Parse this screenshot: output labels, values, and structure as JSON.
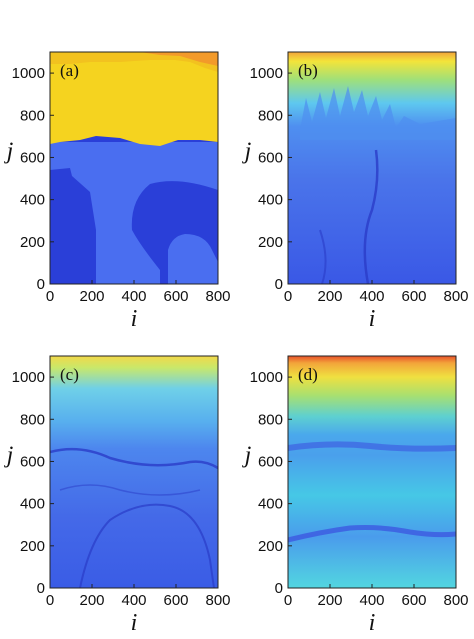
{
  "chart_data": [
    {
      "type": "heatmap",
      "panel_label": "(a)",
      "xlabel": "i",
      "ylabel": "j",
      "xlim": [
        0,
        800
      ],
      "ylim": [
        0,
        1100
      ],
      "x_ticks": [
        "0",
        "200",
        "400",
        "600",
        "800"
      ],
      "y_ticks": [
        "0",
        "200",
        "400",
        "600",
        "800",
        "1000"
      ],
      "grid": false,
      "colors": {
        "low": "#2a3fd8",
        "mid": "#4a6ef0",
        "high": "#f5d31f",
        "top": "#f29a2a"
      }
    },
    {
      "type": "heatmap",
      "panel_label": "(b)",
      "xlabel": "i",
      "ylabel": "j",
      "xlim": [
        0,
        800
      ],
      "ylim": [
        0,
        1100
      ],
      "x_ticks": [
        "0",
        "200",
        "400",
        "600",
        "800"
      ],
      "y_ticks": [
        "0",
        "200",
        "400",
        "600",
        "800",
        "1000"
      ],
      "grid": false,
      "colors": {
        "low": "#3a58e6",
        "mid": "#5ec8ef",
        "high": "#f3e43a",
        "top": "#f2a43a"
      }
    },
    {
      "type": "heatmap",
      "panel_label": "(c)",
      "xlabel": "i",
      "ylabel": "j",
      "xlim": [
        0,
        800
      ],
      "ylim": [
        0,
        1100
      ],
      "x_ticks": [
        "0",
        "200",
        "400",
        "600",
        "800"
      ],
      "y_ticks": [
        "0",
        "200",
        "400",
        "600",
        "800",
        "1000"
      ],
      "grid": false,
      "colors": {
        "low": "#3a58e6",
        "mid": "#5ec8ef",
        "high": "#c9e86a",
        "top": "#f2d84a"
      }
    },
    {
      "type": "heatmap",
      "panel_label": "(d)",
      "xlabel": "i",
      "ylabel": "j",
      "xlim": [
        0,
        800
      ],
      "ylim": [
        0,
        1100
      ],
      "x_ticks": [
        "0",
        "200",
        "400",
        "600",
        "800"
      ],
      "y_ticks": [
        "0",
        "200",
        "400",
        "600",
        "800",
        "1000"
      ],
      "grid": false,
      "colors": {
        "low": "#3a4ee0",
        "mid": "#46c8e6",
        "high": "#f0e040",
        "top": "#e8502a"
      }
    }
  ]
}
